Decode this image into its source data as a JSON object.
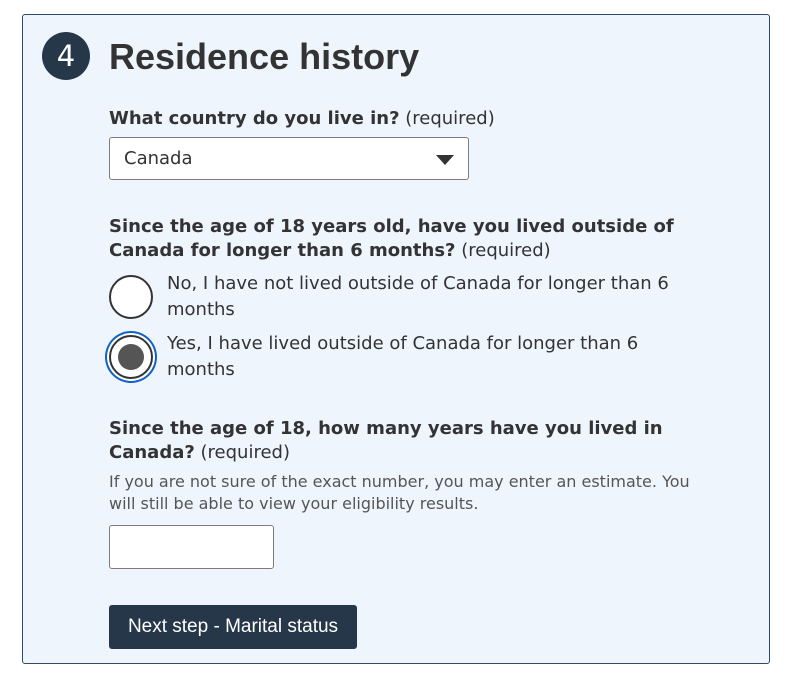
{
  "section": {
    "step_number": "4",
    "title": "Residence history"
  },
  "country_question": {
    "label": "What country do you live in?",
    "required": "(required)",
    "selected_value": "Canada"
  },
  "outside_question": {
    "label": "Since the age of 18 years old, have you lived outside of Canada for longer than 6 months?",
    "required": "(required)",
    "options": [
      {
        "label": "No, I have not lived outside of Canada for longer than 6 months",
        "checked": false
      },
      {
        "label": "Yes, I have lived outside of Canada for longer than 6 months",
        "checked": true
      }
    ]
  },
  "years_question": {
    "label": "Since the age of 18, how many years have you lived in Canada?",
    "required": "(required)",
    "hint": "If you are not sure of the exact number, you may enter an estimate. You will still be able to view your eligibility results.",
    "value": ""
  },
  "next_button": {
    "label": "Next step - Marital status"
  },
  "colors": {
    "panel_background": "#eef5fd",
    "primary_dark": "#26374a",
    "focus_ring": "#0e62c9"
  }
}
